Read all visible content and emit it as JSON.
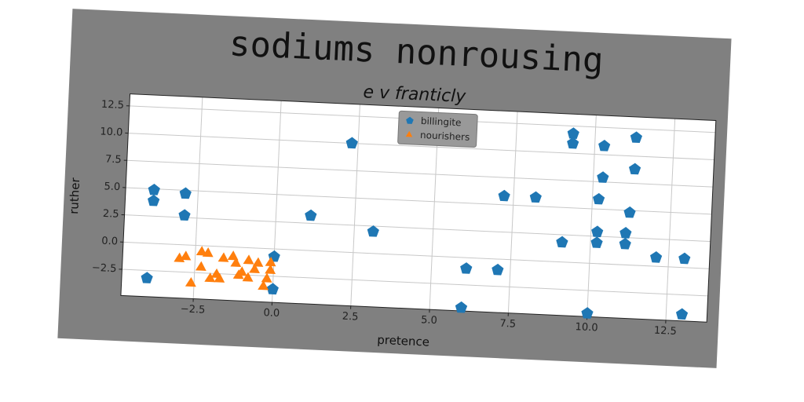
{
  "chart_data": {
    "type": "scatter",
    "title": "sodiums nonrousing",
    "subtitle": "e v franticly",
    "x_label": "pretence",
    "y_label": "ruther",
    "xlim": [
      -4.8,
      13.8
    ],
    "ylim": [
      -4.9,
      13.6
    ],
    "xticks": [
      {
        "value": -2.5,
        "label": "−2.5"
      },
      {
        "value": 0,
        "label": "0.0"
      },
      {
        "value": 2.5,
        "label": "2.5"
      },
      {
        "value": 5,
        "label": "5.0"
      },
      {
        "value": 7.5,
        "label": "7.5"
      },
      {
        "value": 10,
        "label": "10.0"
      },
      {
        "value": 12.5,
        "label": "12.5"
      }
    ],
    "yticks": [
      {
        "value": -2.5,
        "label": "−2.5"
      },
      {
        "value": 0,
        "label": "0.0"
      },
      {
        "value": 2.5,
        "label": "2.5"
      },
      {
        "value": 5,
        "label": "5.0"
      },
      {
        "value": 7.5,
        "label": "7.5"
      },
      {
        "value": 10,
        "label": "10.0"
      },
      {
        "value": 12.5,
        "label": "12.5"
      }
    ],
    "grid": true,
    "legend": "upper center",
    "series": [
      {
        "name": "billingite",
        "color": "#1f77b4",
        "marker": "pentagon",
        "x": [
          -4.0,
          -3.9,
          -3.9,
          -2.9,
          -2.9,
          0.0,
          0.0,
          1.1,
          2.3,
          3.1,
          6.0,
          6.1,
          7.1,
          7.2,
          8.2,
          9.1,
          9.3,
          9.3,
          10.0,
          10.3,
          10.2,
          10.2,
          10.2,
          10.3,
          11.3,
          11.3,
          11.2,
          11.1,
          11.1,
          12.1,
          13.0,
          13.0
        ],
        "values": [
          -3.2,
          4.9,
          3.9,
          4.7,
          2.7,
          -3.7,
          -0.7,
          3.2,
          10.0,
          2.0,
          -4.6,
          -1.0,
          -1.0,
          5.8,
          5.8,
          1.8,
          11.8,
          10.9,
          -4.6,
          10.8,
          1.9,
          2.9,
          5.9,
          7.9,
          11.7,
          8.8,
          4.8,
          2.9,
          1.9,
          0.8,
          0.8,
          -4.3
        ]
      },
      {
        "name": "nourishers",
        "color": "#ff7f0e",
        "marker": "triangle",
        "x": [
          -3.0,
          -2.8,
          -2.6,
          -2.3,
          -2.3,
          -2.1,
          -2.0,
          -1.8,
          -1.7,
          -1.6,
          -1.3,
          -1.2,
          -1.1,
          -1.0,
          -0.8,
          -0.8,
          -0.6,
          -0.5,
          -0.3,
          -0.1,
          -0.1,
          -0.2
        ],
        "values": [
          -1.3,
          -1.1,
          -3.5,
          -0.6,
          -2.0,
          -0.7,
          -3.0,
          -2.6,
          -3.0,
          -1.1,
          -0.9,
          -1.5,
          -2.6,
          -2.3,
          -1.2,
          -2.8,
          -2.0,
          -1.4,
          -3.5,
          -1.3,
          -2.0,
          -2.8
        ]
      }
    ]
  }
}
